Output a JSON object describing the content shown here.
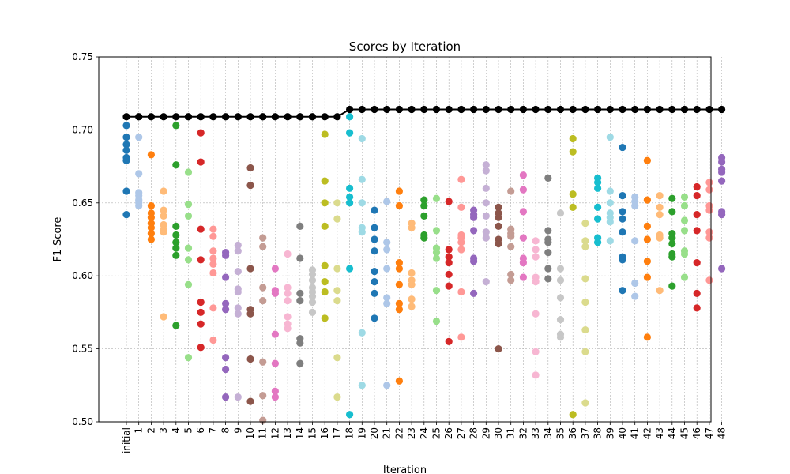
{
  "chart_data": {
    "type": "scatter",
    "title": "Scores by Iteration",
    "xlabel": "Iteration",
    "ylabel": "F1-Score",
    "ylim": [
      0.5,
      0.75
    ],
    "yticks": [
      "0.50",
      "0.55",
      "0.60",
      "0.65",
      "0.70",
      "0.75"
    ],
    "grid": true,
    "categories": [
      "initial",
      "1",
      "2",
      "3",
      "4",
      "5",
      "6",
      "7",
      "8",
      "9",
      "10",
      "11",
      "12",
      "13",
      "14",
      "15",
      "16",
      "17",
      "18",
      "19",
      "20",
      "21",
      "22",
      "23",
      "24",
      "25",
      "26",
      "27",
      "28",
      "29",
      "30",
      "31",
      "32",
      "33",
      "34",
      "35",
      "36",
      "37",
      "38",
      "39",
      "40",
      "41",
      "42",
      "43",
      "44",
      "45",
      "46",
      "47",
      "48"
    ],
    "colors": [
      "#1f77b4",
      "#aec7e8",
      "#ff7f0e",
      "#ffbb78",
      "#2ca02c",
      "#98df8a",
      "#d62728",
      "#ff9896",
      "#9467bd",
      "#c5b0d5",
      "#8c564b",
      "#c49c94",
      "#e377c2",
      "#f7b6d2",
      "#7f7f7f",
      "#c7c7c7",
      "#bcbd22",
      "#dbdb8d",
      "#17becf",
      "#9edae5"
    ],
    "best_color": "#000000",
    "best": [
      0.709,
      0.709,
      0.709,
      0.709,
      0.709,
      0.709,
      0.709,
      0.709,
      0.709,
      0.709,
      0.709,
      0.709,
      0.709,
      0.709,
      0.709,
      0.709,
      0.709,
      0.709,
      0.714,
      0.714,
      0.714,
      0.714,
      0.714,
      0.714,
      0.714,
      0.714,
      0.714,
      0.714,
      0.714,
      0.714,
      0.714,
      0.714,
      0.714,
      0.714,
      0.714,
      0.714,
      0.714,
      0.714,
      0.714,
      0.714,
      0.714,
      0.714,
      0.714,
      0.714,
      0.714,
      0.714,
      0.714,
      0.714,
      0.714
    ],
    "scores": [
      [
        0.703,
        0.695,
        0.69,
        0.686,
        0.681,
        0.679,
        0.658,
        0.642
      ],
      [
        0.695,
        0.67,
        0.657,
        0.655,
        0.652,
        0.65,
        0.648
      ],
      [
        0.683,
        0.648,
        0.643,
        0.64,
        0.636,
        0.633,
        0.629,
        0.625
      ],
      [
        0.658,
        0.645,
        0.641,
        0.635,
        0.632,
        0.63,
        0.572
      ],
      [
        0.703,
        0.676,
        0.634,
        0.628,
        0.623,
        0.619,
        0.614,
        0.566
      ],
      [
        0.671,
        0.649,
        0.641,
        0.619,
        0.611,
        0.594,
        0.544
      ],
      [
        0.698,
        0.678,
        0.632,
        0.611,
        0.582,
        0.575,
        0.567,
        0.551
      ],
      [
        0.632,
        0.627,
        0.617,
        0.612,
        0.608,
        0.602,
        0.578,
        0.556
      ],
      [
        0.616,
        0.614,
        0.599,
        0.581,
        0.577,
        0.544,
        0.536,
        0.517
      ],
      [
        0.621,
        0.617,
        0.603,
        0.591,
        0.589,
        0.578,
        0.574,
        0.517
      ],
      [
        0.674,
        0.662,
        0.605,
        0.577,
        0.574,
        0.543,
        0.514
      ],
      [
        0.626,
        0.62,
        0.592,
        0.583,
        0.541,
        0.518,
        0.501
      ],
      [
        0.605,
        0.59,
        0.588,
        0.56,
        0.54,
        0.521,
        0.517
      ],
      [
        0.615,
        0.592,
        0.588,
        0.583,
        0.572,
        0.567,
        0.564
      ],
      [
        0.634,
        0.612,
        0.588,
        0.583,
        0.557,
        0.554,
        0.54
      ],
      [
        0.604,
        0.601,
        0.597,
        0.592,
        0.589,
        0.586,
        0.582,
        0.575
      ],
      [
        0.697,
        0.665,
        0.65,
        0.634,
        0.607,
        0.596,
        0.589,
        0.571
      ],
      [
        0.65,
        0.639,
        0.605,
        0.59,
        0.583,
        0.544,
        0.517
      ],
      [
        0.709,
        0.698,
        0.66,
        0.654,
        0.65,
        0.605,
        0.505
      ],
      [
        0.694,
        0.666,
        0.65,
        0.633,
        0.63,
        0.561,
        0.525
      ],
      [
        0.645,
        0.633,
        0.625,
        0.617,
        0.603,
        0.596,
        0.588,
        0.571
      ],
      [
        0.651,
        0.623,
        0.618,
        0.605,
        0.585,
        0.581,
        0.525
      ],
      [
        0.658,
        0.648,
        0.609,
        0.605,
        0.594,
        0.581,
        0.577,
        0.528
      ],
      [
        0.636,
        0.633,
        0.602,
        0.597,
        0.594,
        0.584,
        0.579
      ],
      [
        0.652,
        0.648,
        0.641,
        0.628,
        0.626
      ],
      [
        0.653,
        0.631,
        0.619,
        0.616,
        0.612,
        0.59,
        0.569
      ],
      [
        0.651,
        0.618,
        0.613,
        0.609,
        0.601,
        0.593,
        0.555
      ],
      [
        0.666,
        0.647,
        0.628,
        0.626,
        0.623,
        0.618,
        0.589,
        0.558
      ],
      [
        0.645,
        0.642,
        0.64,
        0.631,
        0.612,
        0.61,
        0.588
      ],
      [
        0.676,
        0.672,
        0.66,
        0.65,
        0.641,
        0.63,
        0.626,
        0.596
      ],
      [
        0.647,
        0.643,
        0.64,
        0.634,
        0.625,
        0.622,
        0.55
      ],
      [
        0.658,
        0.632,
        0.629,
        0.627,
        0.62,
        0.601,
        0.597
      ],
      [
        0.669,
        0.659,
        0.644,
        0.626,
        0.612,
        0.609,
        0.599
      ],
      [
        0.624,
        0.618,
        0.613,
        0.599,
        0.596,
        0.574,
        0.548,
        0.532
      ],
      [
        0.667,
        0.631,
        0.625,
        0.623,
        0.616,
        0.605,
        0.598
      ],
      [
        0.643,
        0.605,
        0.597,
        0.585,
        0.57,
        0.56,
        0.558
      ],
      [
        0.694,
        0.685,
        0.656,
        0.647,
        0.505
      ],
      [
        0.636,
        0.624,
        0.62,
        0.598,
        0.582,
        0.563,
        0.548,
        0.513
      ],
      [
        0.667,
        0.664,
        0.66,
        0.647,
        0.639,
        0.626,
        0.623
      ],
      [
        0.695,
        0.658,
        0.65,
        0.643,
        0.64,
        0.637,
        0.624
      ],
      [
        0.688,
        0.655,
        0.644,
        0.639,
        0.63,
        0.613,
        0.611,
        0.59
      ],
      [
        0.654,
        0.651,
        0.648,
        0.624,
        0.595,
        0.586
      ],
      [
        0.679,
        0.652,
        0.634,
        0.625,
        0.61,
        0.599,
        0.558
      ],
      [
        0.655,
        0.647,
        0.642,
        0.628,
        0.626,
        0.59
      ],
      [
        0.653,
        0.644,
        0.629,
        0.626,
        0.622,
        0.615,
        0.613,
        0.593
      ],
      [
        0.654,
        0.648,
        0.638,
        0.631,
        0.617,
        0.615,
        0.599
      ],
      [
        0.661,
        0.655,
        0.642,
        0.631,
        0.609,
        0.588,
        0.578
      ],
      [
        0.664,
        0.659,
        0.648,
        0.645,
        0.63,
        0.626,
        0.597
      ],
      [
        0.681,
        0.678,
        0.673,
        0.671,
        0.665,
        0.644,
        0.642,
        0.605
      ]
    ]
  }
}
